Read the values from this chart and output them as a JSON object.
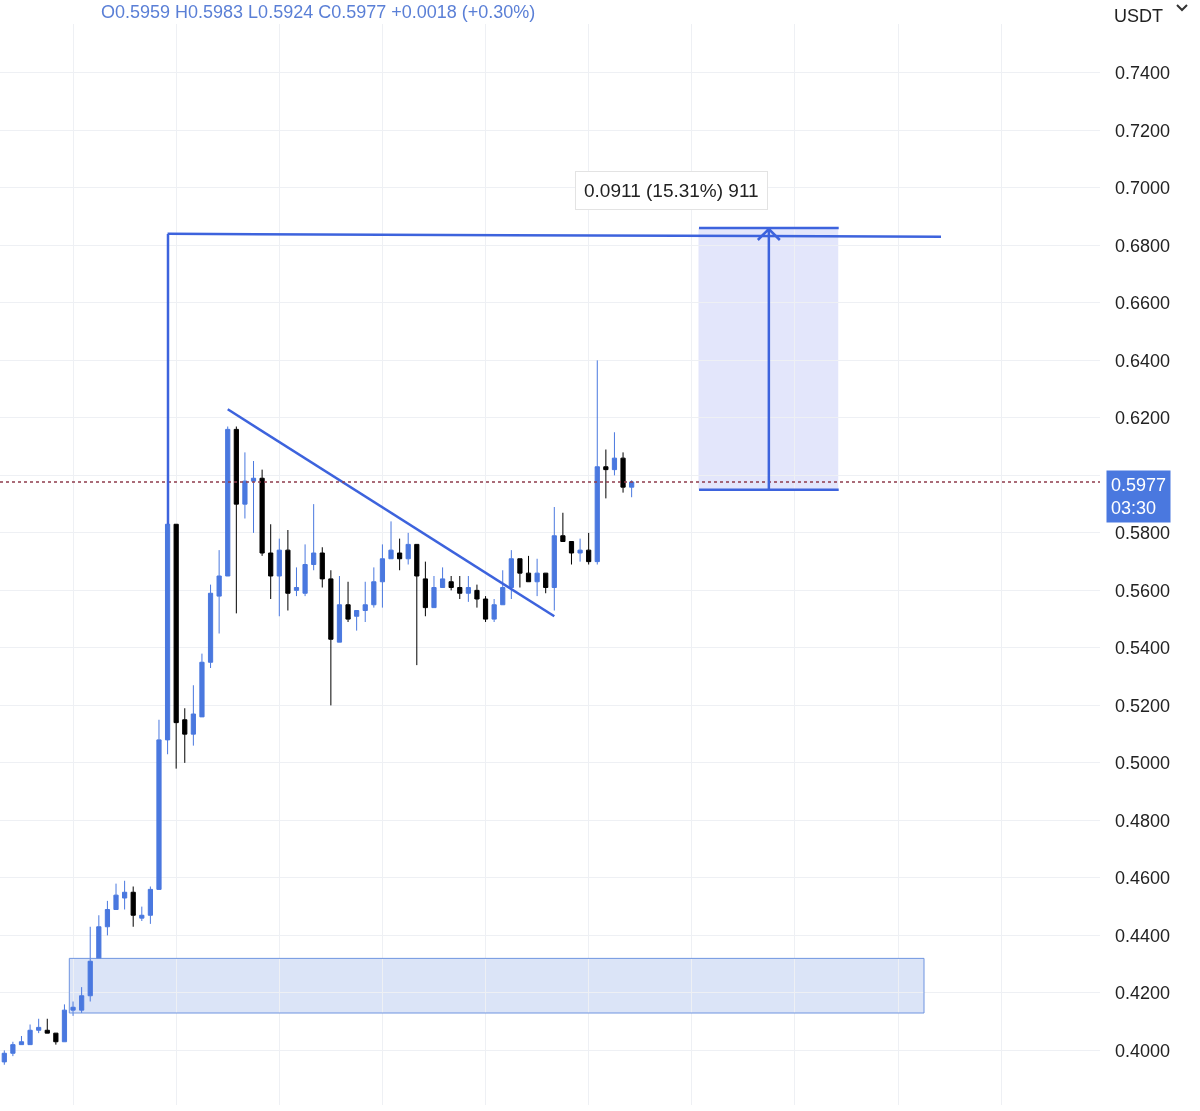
{
  "chart_data": {
    "type": "candlestick",
    "subtitle": "O0.5959 H0.5983 L0.5924 C0.5977 +0.0018 (+0.30%)",
    "annotations": [
      "USDT"
    ],
    "categories": [
      null,
      null,
      null,
      null,
      null,
      null,
      null,
      null,
      null,
      null,
      null,
      null,
      null,
      null,
      null,
      null,
      null,
      null,
      null,
      null,
      null,
      null,
      null,
      null,
      null,
      null,
      null,
      null,
      null,
      null,
      null,
      null,
      null,
      null,
      null,
      null,
      null,
      null,
      null,
      null,
      null,
      null,
      null,
      null,
      null,
      null,
      null,
      null,
      null,
      null,
      null,
      null,
      null,
      null,
      null,
      null,
      null,
      null,
      null,
      null,
      null,
      null,
      null,
      null,
      null,
      null,
      null,
      null,
      null,
      null,
      null,
      null,
      null,
      null,
      null,
      null,
      null,
      null,
      null,
      null,
      null,
      null,
      null,
      null,
      null,
      null,
      null,
      null,
      null,
      null,
      null,
      null,
      null,
      null,
      null,
      null,
      null,
      null,
      null,
      null,
      null,
      null,
      null,
      null,
      null,
      null,
      null,
      null,
      null,
      null,
      null,
      null,
      null,
      null,
      null,
      null,
      null,
      null,
      null,
      null,
      null,
      null,
      null,
      null,
      null,
      null,
      null,
      null
    ],
    "ohlc": [
      [
        0.396,
        0.4,
        0.395,
        0.399
      ],
      [
        0.399,
        0.403,
        0.398,
        0.402
      ],
      [
        0.402,
        0.405,
        0.402,
        0.403
      ],
      [
        0.402,
        0.409,
        0.402,
        0.407
      ],
      [
        0.407,
        0.411,
        0.406,
        0.408
      ],
      [
        0.407,
        0.411,
        0.406,
        0.406
      ],
      [
        0.406,
        0.406,
        0.402,
        0.403
      ],
      [
        0.403,
        0.416,
        0.403,
        0.414
      ],
      [
        0.414,
        0.417,
        0.412,
        0.415
      ],
      [
        0.414,
        0.422,
        0.413,
        0.419
      ],
      [
        0.419,
        0.443,
        0.417,
        0.431
      ],
      [
        0.432,
        0.447,
        0.432,
        0.443
      ],
      [
        0.443,
        0.452,
        0.44,
        0.449
      ],
      [
        0.449,
        0.458,
        0.449,
        0.454
      ],
      [
        0.453,
        0.459,
        0.449,
        0.455
      ],
      [
        0.455,
        0.457,
        0.443,
        0.447
      ],
      [
        0.446,
        0.45,
        0.445,
        0.447
      ],
      [
        0.447,
        0.457,
        0.444,
        0.456
      ],
      [
        0.456,
        0.515,
        0.456,
        0.508
      ],
      [
        0.508,
        0.583,
        0.503,
        0.583
      ],
      [
        0.583,
        0.583,
        0.498,
        0.514
      ],
      [
        0.515,
        0.519,
        0.5,
        0.51
      ],
      [
        0.51,
        0.527,
        0.506,
        0.517
      ],
      [
        0.516,
        0.538,
        0.516,
        0.535
      ],
      [
        0.535,
        0.562,
        0.533,
        0.559
      ],
      [
        0.558,
        0.574,
        0.545,
        0.565
      ],
      [
        0.565,
        0.617,
        0.565,
        0.616
      ],
      [
        0.616,
        0.617,
        0.552,
        0.59
      ],
      [
        0.59,
        0.608,
        0.585,
        0.598
      ],
      [
        0.598,
        0.605,
        0.58,
        0.599
      ],
      [
        0.599,
        0.602,
        0.572,
        0.573
      ],
      [
        0.573,
        0.583,
        0.557,
        0.565
      ],
      [
        0.565,
        0.578,
        0.551,
        0.574
      ],
      [
        0.574,
        0.581,
        0.553,
        0.559
      ],
      [
        0.56,
        0.568,
        0.558,
        0.561
      ],
      [
        0.559,
        0.576,
        0.558,
        0.569
      ],
      [
        0.569,
        0.59,
        0.567,
        0.573
      ],
      [
        0.573,
        0.575,
        0.561,
        0.564
      ],
      [
        0.564,
        0.567,
        0.52,
        0.543
      ],
      [
        0.542,
        0.565,
        0.542,
        0.555
      ],
      [
        0.555,
        0.563,
        0.549,
        0.55
      ],
      [
        0.551,
        0.553,
        0.546,
        0.553
      ],
      [
        0.553,
        0.563,
        0.549,
        0.555
      ],
      [
        0.555,
        0.568,
        0.554,
        0.563
      ],
      [
        0.563,
        0.576,
        0.554,
        0.571
      ],
      [
        0.571,
        0.584,
        0.571,
        0.574
      ],
      [
        0.573,
        0.578,
        0.567,
        0.571
      ],
      [
        0.571,
        0.58,
        0.569,
        0.576
      ],
      [
        0.576,
        0.576,
        0.534,
        0.565
      ],
      [
        0.564,
        0.57,
        0.551,
        0.554
      ],
      [
        0.554,
        0.565,
        0.554,
        0.561
      ],
      [
        0.561,
        0.568,
        0.561,
        0.564
      ],
      [
        0.563,
        0.565,
        0.56,
        0.561
      ],
      [
        0.561,
        0.565,
        0.557,
        0.559
      ],
      [
        0.559,
        0.565,
        0.556,
        0.561
      ],
      [
        0.56,
        0.562,
        0.554,
        0.557
      ],
      [
        0.557,
        0.558,
        0.549,
        0.55
      ],
      [
        0.55,
        0.557,
        0.549,
        0.555
      ],
      [
        0.555,
        0.567,
        0.555,
        0.561
      ],
      [
        0.561,
        0.574,
        0.557,
        0.571
      ],
      [
        0.571,
        0.571,
        0.561,
        0.566
      ],
      [
        0.566,
        0.572,
        0.563,
        0.563
      ],
      [
        0.563,
        0.571,
        0.558,
        0.566
      ],
      [
        0.566,
        0.566,
        0.559,
        0.561
      ],
      [
        0.561,
        0.589,
        0.553,
        0.579
      ],
      [
        0.579,
        0.587,
        0.577,
        0.577
      ],
      [
        0.577,
        0.577,
        0.569,
        0.573
      ],
      [
        0.573,
        0.578,
        0.57,
        0.574
      ],
      [
        0.574,
        0.58,
        0.569,
        0.57
      ],
      [
        0.57,
        0.64,
        0.569,
        0.603
      ],
      [
        0.603,
        0.609,
        0.592,
        0.602
      ],
      [
        0.602,
        0.615,
        0.6,
        0.606
      ],
      [
        0.606,
        0.608,
        0.594,
        0.5959
      ],
      [
        0.5959,
        0.5983,
        0.5924,
        0.5977
      ],
      null,
      null,
      null,
      null,
      null,
      null,
      null,
      null,
      null,
      null,
      null,
      null,
      null,
      null,
      null,
      null,
      null,
      null,
      null,
      null,
      null,
      null,
      null,
      null,
      null,
      null,
      null,
      null,
      null,
      null,
      null,
      null,
      null,
      null,
      null,
      null,
      null,
      null,
      null,
      null,
      null,
      null,
      null,
      null,
      null,
      null,
      null,
      null,
      null,
      null,
      null,
      null,
      null,
      null
    ],
    "colors": [
      "#4a78df",
      "#4a78df",
      "#4a78df",
      "#4a78df",
      "#4a78df",
      "#000000",
      "#000000",
      "#4a78df",
      "#4a78df",
      "#4a78df",
      "#4a78df",
      "#4a78df",
      "#4a78df",
      "#4a78df",
      "#4a78df",
      "#000000",
      "#4a78df",
      "#4a78df",
      "#4a78df",
      "#4a78df",
      "#000000",
      "#000000",
      "#4a78df",
      "#4a78df",
      "#4a78df",
      "#4a78df",
      "#4a78df",
      "#000000",
      "#4a78df",
      "#4a78df",
      "#000000",
      "#000000",
      "#4a78df",
      "#000000",
      "#4a78df",
      "#4a78df",
      "#4a78df",
      "#000000",
      "#000000",
      "#4a78df",
      "#000000",
      "#4a78df",
      "#4a78df",
      "#4a78df",
      "#4a78df",
      "#4a78df",
      "#000000",
      "#4a78df",
      "#000000",
      "#000000",
      "#4a78df",
      "#4a78df",
      "#000000",
      "#000000",
      "#4a78df",
      "#000000",
      "#000000",
      "#4a78df",
      "#4a78df",
      "#4a78df",
      "#000000",
      "#000000",
      "#4a78df",
      "#000000",
      "#4a78df",
      "#000000",
      "#000000",
      "#4a78df",
      "#000000",
      "#4a78df",
      "#000000",
      "#4a78df",
      "#000000",
      "#4a78df",
      null,
      null,
      null,
      null,
      null,
      null,
      null,
      null,
      null,
      null,
      null,
      null,
      null,
      null,
      null,
      null,
      null,
      null,
      null,
      null,
      null,
      null,
      null,
      null,
      null,
      null,
      null,
      null,
      null,
      null,
      null,
      null,
      null,
      null,
      null,
      null,
      null,
      null,
      null,
      null,
      null,
      null,
      null,
      null,
      null,
      null,
      null,
      null,
      null,
      null,
      null,
      null,
      null,
      null
    ],
    "series": [
      {
        "type": "line",
        "values": [
          null,
          null,
          null,
          null,
          null,
          null,
          null,
          null,
          null,
          null,
          null,
          null,
          null,
          null,
          null,
          null,
          null,
          null,
          null,
          null,
          null,
          null,
          null,
          null,
          null,
          null,
          0.623,
          null,
          null,
          null,
          null,
          null,
          null,
          null,
          null,
          null,
          null,
          null,
          null,
          null,
          null,
          null,
          null,
          null,
          null,
          null,
          null,
          null,
          null,
          null,
          null,
          null,
          null,
          null,
          null,
          null,
          null,
          null,
          null,
          null,
          null,
          null,
          null,
          null,
          0.551,
          null,
          null,
          null,
          null,
          null,
          null,
          null,
          null,
          null,
          null,
          null,
          null,
          null,
          null,
          null,
          null,
          null,
          null,
          null,
          null,
          null,
          null,
          null,
          null,
          null,
          null,
          null,
          null,
          null,
          null,
          null,
          null,
          null,
          null,
          null,
          null,
          null,
          null,
          null,
          null,
          null,
          null,
          null,
          null,
          null,
          null,
          null,
          null,
          null,
          null,
          null,
          null,
          null,
          null,
          null,
          null,
          null,
          null,
          null,
          null,
          null,
          null,
          null
        ],
        "color": "#3d63dd"
      },
      {
        "type": "line",
        "values": [
          null,
          null,
          null,
          null,
          null,
          null,
          null,
          null,
          null,
          null,
          null,
          null,
          null,
          null,
          null,
          null,
          null,
          null,
          null,
          0.684,
          null,
          null,
          null,
          null,
          null,
          null,
          null,
          null,
          null,
          null,
          null,
          null,
          null,
          null,
          null,
          null,
          null,
          null,
          null,
          null,
          null,
          null,
          null,
          null,
          null,
          null,
          null,
          null,
          null,
          null,
          null,
          null,
          null,
          null,
          null,
          null,
          null,
          null,
          null,
          null,
          null,
          null,
          null,
          null,
          null,
          null,
          null,
          null,
          null,
          null,
          null,
          null,
          null,
          null,
          null,
          null,
          null,
          null,
          null,
          null,
          null,
          null,
          null,
          null,
          null,
          null,
          null,
          null,
          null,
          null,
          null,
          null,
          null,
          null,
          null,
          null,
          null,
          null,
          null,
          null,
          null,
          null,
          null,
          null,
          null,
          null,
          null,
          null,
          null,
          0.683,
          null,
          null,
          null,
          null,
          null,
          null,
          null,
          null,
          null,
          null,
          null,
          null,
          null,
          null,
          null,
          null,
          null,
          null
        ],
        "color": "#3d63dd"
      }
    ],
    "ref_lines": [
      {
        "axis": "y",
        "value": 0.5977,
        "label": "0.5977\n03:30",
        "color": "#8e3b4c",
        "line_style": "dotted"
      }
    ],
    "bands": [
      {
        "axis": "y",
        "from": 0.413,
        "to": 0.432,
        "color": "#6f94e0"
      },
      {
        "axis": "y",
        "from": 0.595,
        "to": 0.686,
        "label": "0.0911 (15.31%) 911",
        "color": "#8f9cf0"
      }
    ],
    "ylim": [
      0.381,
      0.757
    ],
    "yticks": [
      {
        "value": 0.4,
        "label": "0.4000"
      },
      {
        "value": 0.42,
        "label": "0.4200"
      },
      {
        "value": 0.44,
        "label": "0.4400"
      },
      {
        "value": 0.46,
        "label": "0.4600"
      },
      {
        "value": 0.48,
        "label": "0.4800"
      },
      {
        "value": 0.5,
        "label": "0.5000"
      },
      {
        "value": 0.52,
        "label": "0.5200"
      },
      {
        "value": 0.54,
        "label": "0.5400"
      },
      {
        "value": 0.56,
        "label": "0.5600"
      },
      {
        "value": 0.58,
        "label": "0.5800"
      },
      {
        "value": 0.6,
        "label": null
      },
      {
        "value": 0.62,
        "label": "0.6200"
      },
      {
        "value": 0.64,
        "label": "0.6400"
      },
      {
        "value": 0.66,
        "label": "0.6600"
      },
      {
        "value": 0.68,
        "label": "0.6800"
      },
      {
        "value": 0.7,
        "label": "0.7000"
      },
      {
        "value": 0.72,
        "label": "0.7200"
      },
      {
        "value": 0.74,
        "label": "0.7400"
      }
    ],
    "grid": true,
    "tick_labels": "y"
  }
}
